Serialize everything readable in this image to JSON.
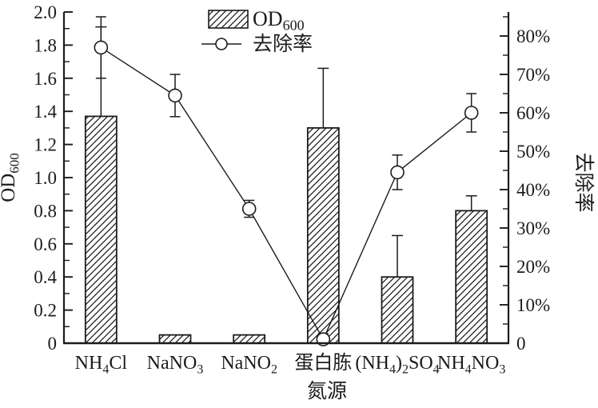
{
  "figure": {
    "background": "#ffffff",
    "ink_color": "#1c1c1c"
  },
  "chart_data": {
    "type": "bar+line",
    "title": "",
    "categories": [
      "NH_4_Cl",
      "NaNO_3_",
      "NaNO_2_",
      "蛋白胨",
      "(NH_4_)_2_SO_4_",
      "NH_4_NO_3_"
    ],
    "x_axis": {
      "label": "氮源"
    },
    "left_axis": {
      "title": "OD_600_",
      "min": 0,
      "max": 2.0,
      "tick_values": [
        0,
        0.2,
        0.4,
        0.6,
        0.8,
        1.0,
        1.2,
        1.4,
        1.6,
        1.8,
        2.0
      ],
      "tick_labels": [
        "0",
        "0.2",
        "0.4",
        "0.6",
        "0.8",
        "1.0",
        "1.2",
        "1.4",
        "1.6",
        "1.8",
        "2.0"
      ],
      "minor_step": 0.1
    },
    "right_axis": {
      "title": "去除率",
      "min": 0,
      "max": 86.25,
      "tick_values": [
        0,
        10,
        20,
        30,
        40,
        50,
        60,
        70,
        80
      ],
      "tick_labels": [
        "0",
        "10%",
        "20%",
        "30%",
        "40%",
        "50%",
        "60%",
        "70%",
        "80%"
      ],
      "minor_step": 5
    },
    "series": [
      {
        "name": "OD_600_",
        "type": "bar",
        "axis": "left",
        "values": [
          1.37,
          0.05,
          0.05,
          1.3,
          0.4,
          0.8
        ],
        "err_up": [
          0.54,
          0,
          0,
          0.36,
          0.25,
          0.09
        ]
      },
      {
        "name": "去除率",
        "type": "line",
        "axis": "right",
        "marker": "open-circle",
        "values": [
          77,
          64.5,
          35,
          1,
          44.5,
          60
        ],
        "err": [
          8,
          5.5,
          2.2,
          1.5,
          4.5,
          5
        ]
      }
    ],
    "legend": {
      "position": "top-center",
      "items": [
        "OD_600_",
        "去除率"
      ]
    },
    "grid": false
  }
}
